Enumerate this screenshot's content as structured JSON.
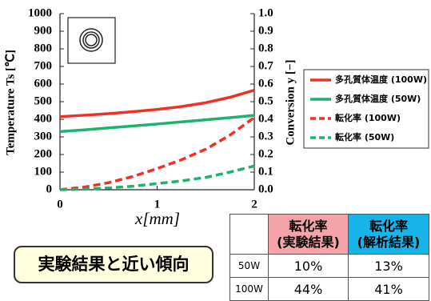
{
  "chart_data": {
    "type": "line",
    "xlabel": "x[mm]",
    "ylabel": "Temperature Ts [℃]",
    "y2label": "Conversion y [−]",
    "x": [
      0,
      0.25,
      0.5,
      0.75,
      1,
      1.25,
      1.5,
      1.75,
      2
    ],
    "xlim": [
      0,
      2
    ],
    "xticks": [
      0,
      1,
      2
    ],
    "ylim": [
      0,
      1000
    ],
    "yticks": [
      0,
      100,
      200,
      300,
      400,
      500,
      600,
      700,
      800,
      900,
      1000
    ],
    "y2lim": [
      0,
      1
    ],
    "y2ticks": [
      {
        "value": 0,
        "label": "0.0"
      },
      0.1,
      0.2,
      0.3,
      0.4,
      0.5,
      0.6,
      0.7,
      0.8,
      0.9,
      {
        "value": 1,
        "label": "1.0"
      }
    ],
    "series": [
      {
        "name": "多孔質体温度 (100W)",
        "color": "#ee3124",
        "dash": false,
        "values": [
          415,
          423,
          432,
          443,
          456,
          472,
          494,
          525,
          565
        ]
      },
      {
        "name": "多孔質体温度 (50W)",
        "color": "#1bb46a",
        "dash": false,
        "values": [
          330,
          340,
          351,
          362,
          373,
          385,
          397,
          409,
          422
        ]
      },
      {
        "name": "転化率 (100W)",
        "color": "#ee3124",
        "dash": true,
        "axis": "y2",
        "values": [
          0,
          0.015,
          0.04,
          0.075,
          0.12,
          0.17,
          0.23,
          0.31,
          0.41
        ]
      },
      {
        "name": "転化率 (50W)",
        "color": "#1bb46a",
        "dash": true,
        "axis": "y2",
        "values": [
          0,
          0.003,
          0.01,
          0.02,
          0.035,
          0.05,
          0.07,
          0.1,
          0.135
        ]
      }
    ]
  },
  "table": {
    "header": [
      [
        "転化率",
        "(実験結果)"
      ],
      [
        "転化率",
        "(解析結果)"
      ]
    ],
    "rows": [
      [
        "50W",
        "10%",
        "13%"
      ],
      [
        "100W",
        "44%",
        "41%"
      ]
    ]
  },
  "callout": "実験結果と近い傾向"
}
